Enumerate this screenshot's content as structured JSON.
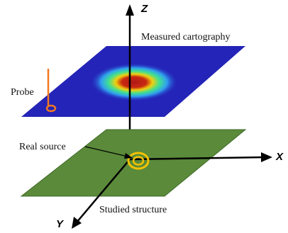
{
  "labels": {
    "measured": "Measured cartography",
    "probe": "Probe",
    "real_source": "Real source",
    "studied": "Studied structure"
  },
  "axes": {
    "x": "X",
    "y": "Y",
    "z": "Z"
  },
  "colors": {
    "scan_plane": "#2424b8",
    "structure_plane": "#5a8a3a",
    "probe": "#f07820",
    "source": "#f2c200",
    "axis": "#000000"
  }
}
